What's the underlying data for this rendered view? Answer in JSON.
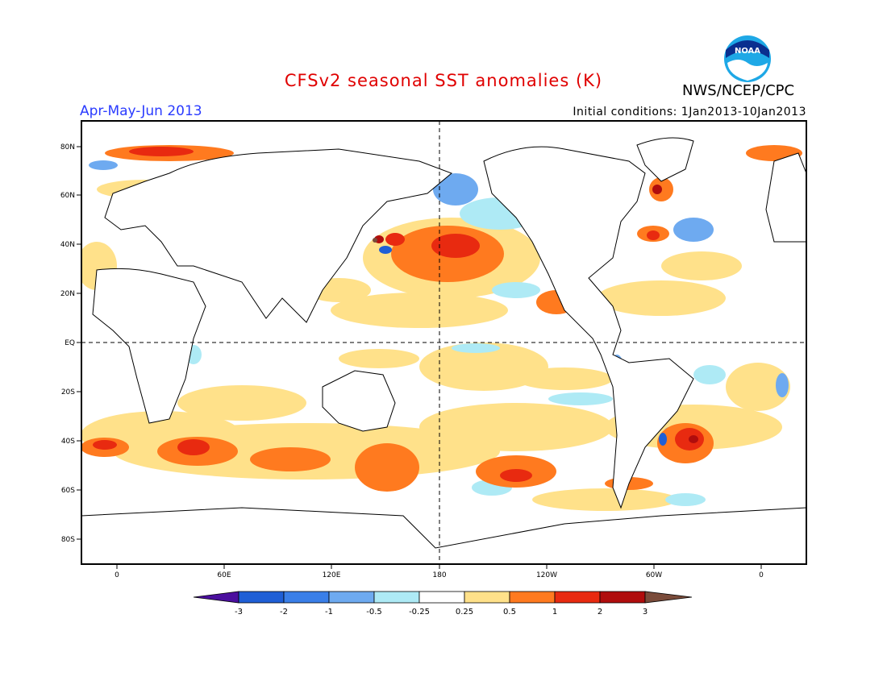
{
  "header": {
    "title": "CFSv2 seasonal SST anomalies (K)",
    "period": "Apr-May-Jun 2013",
    "initial_conditions": "Initial conditions: 1Jan2013-10Jan2013",
    "agency": "NWS/NCEP/CPC",
    "logo_text": "NOAA"
  },
  "map": {
    "lat_labels": [
      "80N",
      "60N",
      "40N",
      "20N",
      "EQ",
      "20S",
      "40S",
      "60S",
      "80S"
    ],
    "lon_labels": [
      "0",
      "60E",
      "120E",
      "180",
      "120W",
      "60W",
      "0"
    ]
  },
  "colorbar": {
    "tick_labels": [
      "-3",
      "-2",
      "-1",
      "-0.5",
      "-0.25",
      "0.25",
      "0.5",
      "1",
      "2",
      "3"
    ],
    "colors": [
      "#4b0f9e",
      "#1f5fd6",
      "#3a7fe8",
      "#6eaaf0",
      "#aeeaf5",
      "#ffffff",
      "#ffe18a",
      "#ff7a1f",
      "#e82a10",
      "#b00d0d",
      "#7a4b3a"
    ]
  }
}
